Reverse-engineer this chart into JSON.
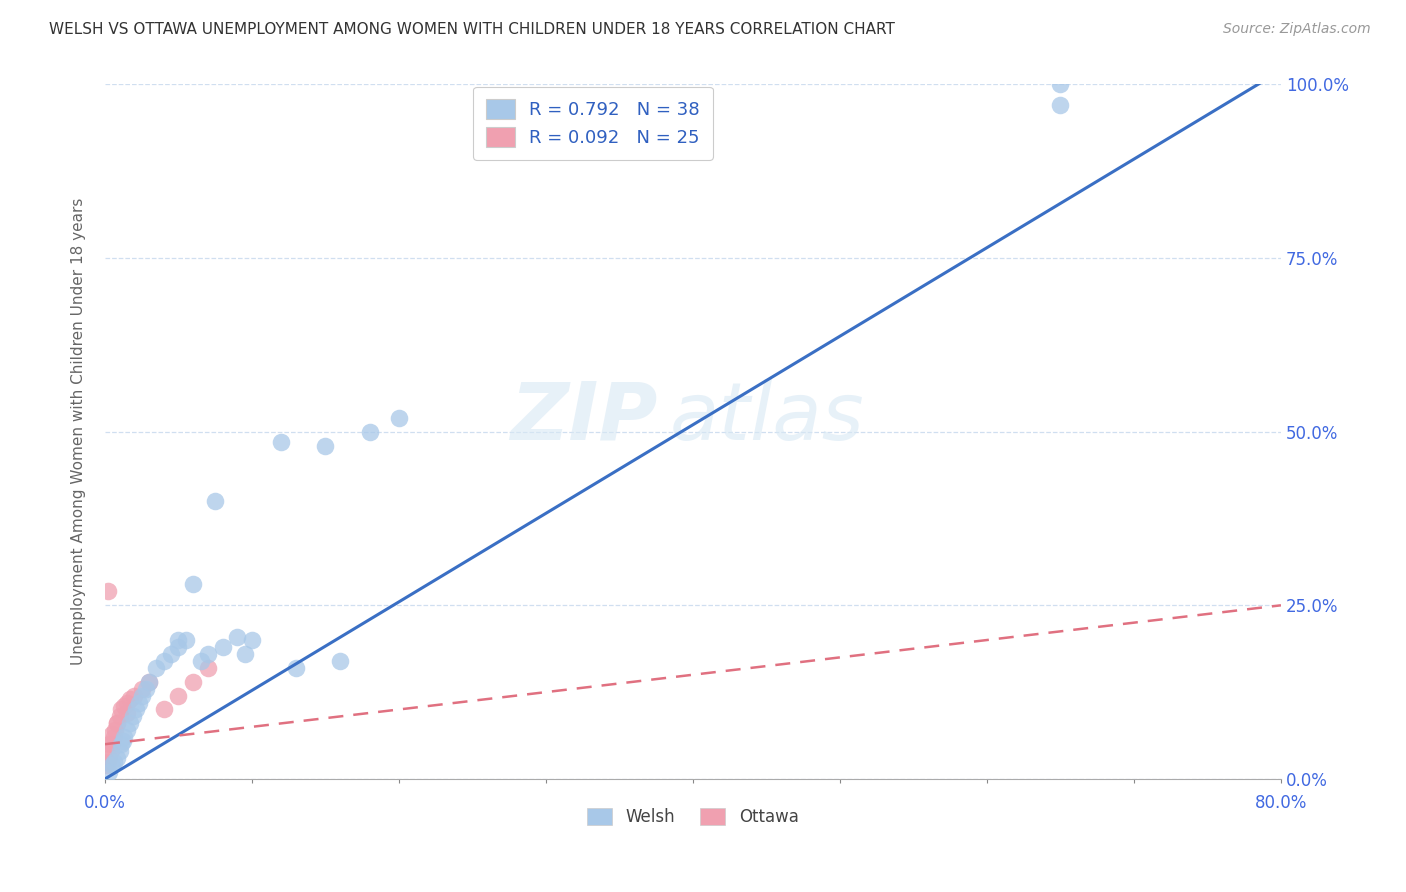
{
  "title": "WELSH VS OTTAWA UNEMPLOYMENT AMONG WOMEN WITH CHILDREN UNDER 18 YEARS CORRELATION CHART",
  "source": "Source: ZipAtlas.com",
  "ylabel": "Unemployment Among Women with Children Under 18 years",
  "xlabel_ticks": [
    "0.0%",
    "",
    "",
    "",
    "",
    "",
    "",
    "",
    "80.0%"
  ],
  "xlabel_vals": [
    0,
    10,
    20,
    30,
    40,
    50,
    60,
    70,
    80
  ],
  "ylabel_ticks_right": [
    "0.0%",
    "25.0%",
    "50.0%",
    "75.0%",
    "100.0%"
  ],
  "ylabel_vals": [
    0,
    25,
    50,
    75,
    100
  ],
  "xlim": [
    0,
    80
  ],
  "ylim": [
    0,
    100
  ],
  "welsh_R": 0.792,
  "welsh_N": 38,
  "ottawa_R": 0.092,
  "ottawa_N": 25,
  "welsh_color": "#a8c8e8",
  "welsh_edge_color": "#a8c8e8",
  "welsh_line_color": "#3a6fc4",
  "ottawa_color": "#f0a0b0",
  "ottawa_edge_color": "#f0a0b0",
  "ottawa_line_color": "#e07080",
  "background_color": "#ffffff",
  "watermark_zip": "ZIP",
  "watermark_atlas": "atlas",
  "welsh_x": [
    0.3,
    0.5,
    0.6,
    0.8,
    1.0,
    1.1,
    1.2,
    1.3,
    1.5,
    1.7,
    1.9,
    2.1,
    2.3,
    2.5,
    2.8,
    3.0,
    3.5,
    4.0,
    4.5,
    5.0,
    5.5,
    6.5,
    7.0,
    8.0,
    9.0,
    10.0,
    12.0,
    15.0,
    18.0,
    20.0,
    5.0,
    6.0,
    7.5,
    9.5,
    13.0,
    16.0,
    65.0,
    65.0
  ],
  "welsh_y": [
    1.0,
    2.0,
    2.5,
    3.0,
    4.0,
    5.0,
    5.5,
    6.0,
    7.0,
    8.0,
    9.0,
    10.0,
    11.0,
    12.0,
    13.0,
    14.0,
    16.0,
    17.0,
    18.0,
    19.0,
    20.0,
    17.0,
    18.0,
    19.0,
    20.5,
    20.0,
    48.5,
    48.0,
    50.0,
    52.0,
    20.0,
    28.0,
    40.0,
    18.0,
    16.0,
    17.0,
    97.0,
    100.0
  ],
  "ottawa_x": [
    0.1,
    0.2,
    0.3,
    0.4,
    0.5,
    0.6,
    0.7,
    0.8,
    1.0,
    1.1,
    1.3,
    1.5,
    1.7,
    2.0,
    2.5,
    3.0,
    4.0,
    5.0,
    6.0,
    7.0,
    0.2,
    0.3,
    0.5,
    0.8,
    1.5
  ],
  "ottawa_y": [
    2.0,
    2.5,
    3.0,
    4.0,
    5.0,
    6.0,
    7.0,
    8.0,
    9.0,
    10.0,
    10.5,
    11.0,
    11.5,
    12.0,
    13.0,
    14.0,
    10.0,
    12.0,
    14.0,
    16.0,
    27.0,
    5.0,
    6.5,
    8.0,
    9.5
  ],
  "welsh_line_x": [
    0,
    80
  ],
  "welsh_line_y": [
    0,
    102
  ],
  "ottawa_line_x": [
    0,
    80
  ],
  "ottawa_line_y": [
    5.0,
    25.0
  ]
}
